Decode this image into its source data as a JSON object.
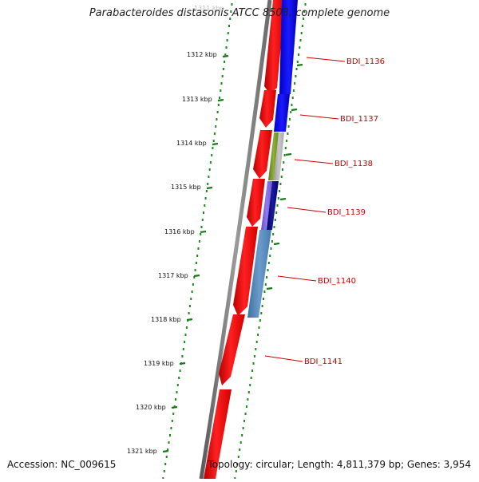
{
  "title": "Parabacteroides distasonis ATCC 8503, complete genome",
  "footer": {
    "accession": "Accession: NC_009615",
    "summary": "Topology: circular; Length: 4,811,379 bp; Genes: 3,954"
  },
  "ticks": [
    {
      "label": "1311 kbp"
    },
    {
      "label": "1312 kbp"
    },
    {
      "label": "1313 kbp"
    },
    {
      "label": "1314 kbp"
    },
    {
      "label": "1315 kbp"
    },
    {
      "label": "1316 kbp"
    },
    {
      "label": "1317 kbp"
    },
    {
      "label": "1318 kbp"
    },
    {
      "label": "1319 kbp"
    },
    {
      "label": "1320 kbp"
    },
    {
      "label": "1321 kbp"
    }
  ],
  "genes": [
    {
      "label": "BDI_1136"
    },
    {
      "label": "BDI_1137"
    },
    {
      "label": "BDI_1138"
    },
    {
      "label": "BDI_1139"
    },
    {
      "label": "BDI_1140"
    },
    {
      "label": "BDI_1141"
    }
  ],
  "colors": {
    "backbone": "#7a7a7a",
    "forward_gene": "#ff0000",
    "tick_dots": "#1a8a1a",
    "gene_label": "#cc0000"
  }
}
